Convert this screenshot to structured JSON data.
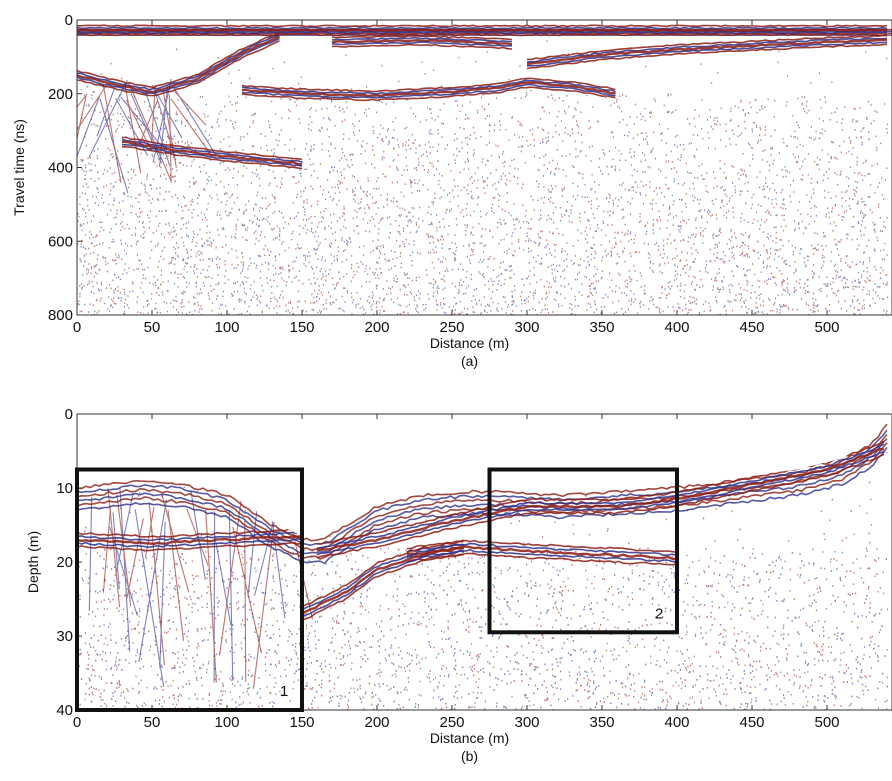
{
  "chart_data": [
    {
      "type": "heatmap",
      "panel": "a",
      "caption": "(a)",
      "xlabel": "Distance (m)",
      "ylabel": "Travel time (ns)",
      "xlim": [
        0,
        540
      ],
      "ylim": [
        800,
        0
      ],
      "x_ticks": [
        0,
        50,
        100,
        150,
        200,
        250,
        300,
        350,
        400,
        450,
        500
      ],
      "y_ticks": [
        0,
        200,
        400,
        600,
        800
      ],
      "colors": {
        "positive": "#8b1a10",
        "negative": "#2c2e8c",
        "background": "#ffffff"
      },
      "reflectors": [
        {
          "x": [
            0,
            540
          ],
          "y": [
            28,
            28
          ]
        },
        {
          "x": [
            0,
            25,
            50,
            80,
            110,
            135
          ],
          "y": [
            150,
            175,
            195,
            160,
            90,
            45
          ]
        },
        {
          "x": [
            110,
            150,
            200,
            250,
            280,
            300,
            330,
            360
          ],
          "y": [
            190,
            200,
            205,
            195,
            185,
            170,
            180,
            200
          ]
        },
        {
          "x": [
            170,
            230,
            290
          ],
          "y": [
            60,
            55,
            65
          ]
        },
        {
          "x": [
            300,
            350,
            400,
            450,
            500,
            540
          ],
          "y": [
            120,
            95,
            80,
            70,
            60,
            55
          ]
        },
        {
          "x": [
            30,
            60,
            100,
            150
          ],
          "y": [
            330,
            350,
            370,
            390
          ]
        }
      ]
    },
    {
      "type": "heatmap",
      "panel": "b",
      "caption": "(b)",
      "xlabel": "Distance (m)",
      "ylabel": "Depth (m)",
      "xlim": [
        0,
        540
      ],
      "ylim": [
        40,
        0
      ],
      "x_ticks": [
        0,
        50,
        100,
        150,
        200,
        250,
        300,
        350,
        400,
        450,
        500
      ],
      "y_ticks": [
        0,
        10,
        20,
        30,
        40
      ],
      "colors": {
        "positive": "#8b1a10",
        "negative": "#2c2e8c",
        "background": "#ffffff"
      },
      "surface": {
        "x": [
          0,
          20,
          45,
          70,
          100,
          130,
          150,
          165,
          180,
          200,
          230,
          260,
          290,
          320,
          360,
          400,
          440,
          480,
          510,
          530,
          540
        ],
        "y": [
          9.5,
          9.0,
          8.5,
          9.0,
          10.5,
          14.5,
          16.5,
          16.5,
          14.5,
          12.0,
          10.5,
          10.0,
          10.0,
          10.5,
          10.0,
          9.5,
          8.5,
          7.5,
          6.0,
          3.5,
          1.0
        ]
      },
      "reflectors": [
        {
          "x": [
            0,
            50,
            100,
            150
          ],
          "y": [
            17,
            17.5,
            17,
            16.5
          ]
        },
        {
          "x": [
            160,
            200,
            250,
            300,
            360,
            400,
            450,
            500,
            540
          ],
          "y": [
            18.5,
            17,
            14.5,
            12.5,
            12.5,
            11.5,
            9.5,
            7.5,
            4.5
          ]
        },
        {
          "x": [
            220,
            260,
            300,
            350,
            400
          ],
          "y": [
            19,
            18,
            18.5,
            19,
            19.5
          ]
        },
        {
          "x": [
            150,
            180,
            200,
            230,
            260
          ],
          "y": [
            27,
            24,
            21,
            19,
            18
          ]
        }
      ],
      "boxes": [
        {
          "label": "1",
          "x": [
            0,
            150
          ],
          "y": [
            7.5,
            40
          ]
        },
        {
          "label": "2",
          "x": [
            275,
            400
          ],
          "y": [
            7.5,
            29.5
          ]
        }
      ]
    }
  ]
}
